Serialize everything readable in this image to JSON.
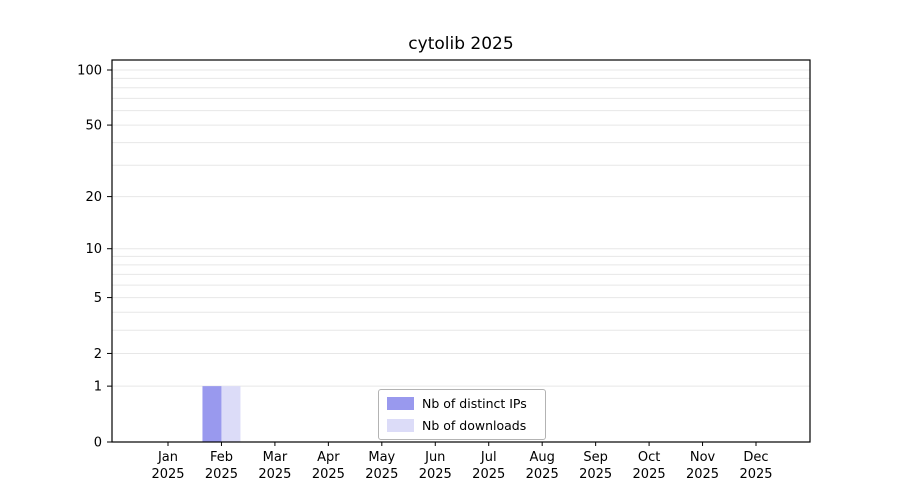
{
  "title": "cytolib 2025",
  "chart_data": {
    "type": "bar",
    "title": "cytolib 2025",
    "categories": [
      "Jan",
      "Feb",
      "Mar",
      "Apr",
      "May",
      "Jun",
      "Jul",
      "Aug",
      "Sep",
      "Oct",
      "Nov",
      "Dec"
    ],
    "year": "2025",
    "series": [
      {
        "name": "Nb of distinct IPs",
        "color": "#9999ee",
        "values": [
          0,
          1,
          0,
          0,
          0,
          0,
          0,
          0,
          0,
          0,
          0,
          0
        ]
      },
      {
        "name": "Nb of downloads",
        "color": "#dcdcf8",
        "values": [
          0,
          1,
          0,
          0,
          0,
          0,
          0,
          0,
          0,
          0,
          0,
          0
        ]
      }
    ],
    "yticks": [
      0,
      1,
      2,
      5,
      10,
      20,
      50,
      100
    ],
    "grid_values": [
      1,
      2,
      3,
      4,
      5,
      6,
      7,
      8,
      9,
      10,
      20,
      30,
      40,
      50,
      60,
      70,
      80,
      90,
      100
    ],
    "yscale": "log1p",
    "ylim": [
      0,
      113
    ],
    "xlabel": "",
    "ylabel": "",
    "grid": "horizontal",
    "grid_color": "#e7e7e7",
    "axis_color": "#000000",
    "legend_position": "bottom-center-inside"
  }
}
